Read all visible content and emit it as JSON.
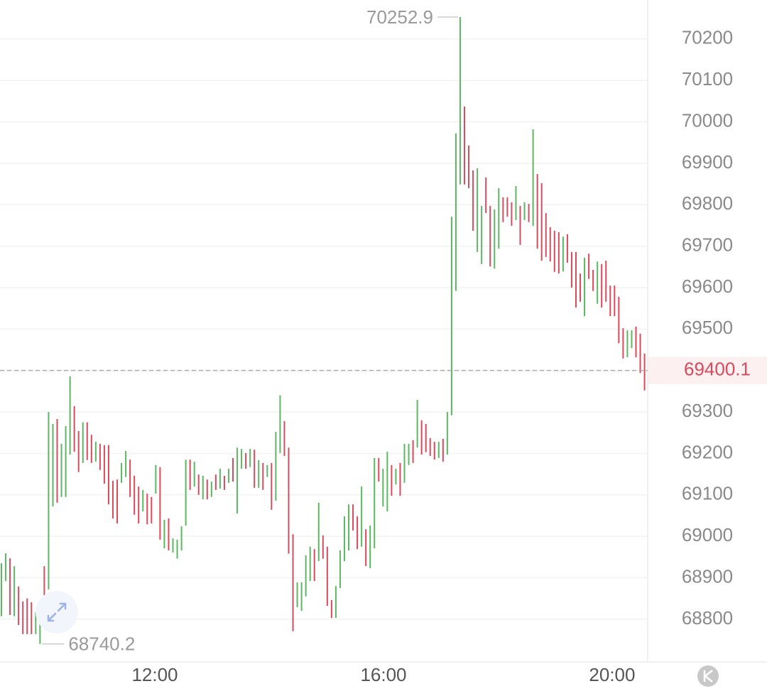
{
  "chart_data": {
    "type": "hilo",
    "up_color": "#5cb860",
    "down_color": "#d94a5c",
    "xlim": [
      557.5,
      1237.3
    ],
    "xticks": [
      {
        "value": 720,
        "label": "12:00"
      },
      {
        "value": 960,
        "label": "16:00"
      },
      {
        "value": 1200,
        "label": "20:00"
      }
    ],
    "ylim": [
      68697,
      70294
    ],
    "yticks": [
      68800,
      68900,
      69000,
      69100,
      69200,
      69300,
      69400,
      69500,
      69600,
      69700,
      69800,
      69900,
      70000,
      70100,
      70200
    ],
    "grid": true,
    "last_price": 69400.1,
    "x": [
      559,
      563.5,
      568,
      572.5,
      577,
      581.5,
      586,
      590.5,
      595,
      599.5,
      604,
      608.5,
      613,
      617.5,
      622,
      626.5,
      631,
      635.5,
      640,
      644.5,
      649,
      653.5,
      658,
      662.5,
      667,
      671.5,
      676,
      680.5,
      685,
      689.5,
      694,
      698.5,
      703,
      707.5,
      712,
      716.5,
      721,
      725.5,
      730,
      734.5,
      739,
      743.5,
      748,
      752.5,
      757,
      761.5,
      766,
      770.5,
      775,
      779.5,
      784,
      788.5,
      793,
      797.5,
      802,
      806.5,
      811,
      815.5,
      820,
      824.5,
      829,
      833.5,
      838,
      842.5,
      847,
      851.5,
      856,
      860.5,
      865,
      869.5,
      874,
      878.5,
      883,
      887.5,
      892,
      896.5,
      901,
      905.5,
      910,
      914.5,
      919,
      923.5,
      928,
      932.5,
      937,
      941.5,
      946,
      950.5,
      955,
      959.5,
      964,
      968.5,
      973,
      977.5,
      982,
      986.5,
      991,
      995.5,
      1000,
      1004.5,
      1009,
      1013.5,
      1018,
      1022.5,
      1027,
      1031.5,
      1036,
      1040.5,
      1045,
      1049.5,
      1054,
      1058.5,
      1063,
      1067.5,
      1072,
      1076.5,
      1081,
      1085.5,
      1090,
      1094.5,
      1099,
      1103.5,
      1108,
      1112.5,
      1117,
      1121.5,
      1126,
      1130.5,
      1135,
      1139.5,
      1144,
      1148.5,
      1153,
      1157.5,
      1162,
      1166.5,
      1171,
      1175.5,
      1180,
      1184.5,
      1189,
      1193.5,
      1198,
      1202.5,
      1207,
      1211.5,
      1216,
      1220.5,
      1225,
      1229.5,
      1234
    ],
    "high": [
      68935,
      68959,
      68947,
      68928,
      68879,
      68843,
      68850,
      68841,
      68817,
      68826,
      68928,
      69300,
      69271,
      69283,
      69223,
      69266,
      69386,
      69314,
      69254,
      69275,
      69275,
      69245,
      69228,
      69223,
      69220,
      69220,
      69134,
      69137,
      69177,
      69206,
      69185,
      69146,
      69120,
      69112,
      69103,
      69095,
      69172,
      69167,
      69040,
      69043,
      68995,
      68992,
      69024,
      69185,
      69185,
      69180,
      69149,
      69146,
      69137,
      69132,
      69149,
      69163,
      69146,
      69163,
      69189,
      69214,
      69211,
      69201,
      69211,
      69209,
      69184,
      69177,
      69172,
      69177,
      69252,
      69340,
      69278,
      69214,
      69005,
      68889,
      68889,
      68954,
      68975,
      68969,
      69081,
      69002,
      68975,
      68846,
      68880,
      68966,
      69048,
      69077,
      69077,
      69048,
      69120,
      69017,
      69026,
      69189,
      69189,
      69163,
      69204,
      69172,
      69163,
      69177,
      69223,
      69223,
      69232,
      69329,
      69280,
      69271,
      69237,
      69228,
      69228,
      69235,
      69300,
      69771,
      69972,
      70252.9,
      70037,
      69943,
      69883,
      69888,
      69797,
      69866,
      69797,
      69789,
      69840,
      69818,
      69818,
      69806,
      69845,
      69797,
      69806,
      69802,
      69982,
      69874,
      69852,
      69780,
      69746,
      69737,
      69734,
      69723,
      69729,
      69686,
      69686,
      69634,
      69672,
      69682,
      69643,
      69663,
      69657,
      69665,
      69605,
      69605,
      69578,
      69502,
      69497,
      69497,
      69506,
      69489,
      69441
    ],
    "low": [
      68807,
      68892,
      68810,
      68807,
      68786,
      68764,
      68764,
      68764,
      68764,
      68740.2,
      68820,
      68872,
      69072,
      69081,
      69095,
      69095,
      69197,
      69204,
      69155,
      69177,
      69184,
      69177,
      69180,
      69160,
      69127,
      69077,
      69043,
      69031,
      69129,
      69143,
      69095,
      69052,
      69031,
      69060,
      69029,
      69031,
      69103,
      68992,
      68971,
      68966,
      68961,
      68946,
      68966,
      69026,
      69112,
      69120,
      69100,
      69089,
      69089,
      69095,
      69112,
      69115,
      69112,
      69129,
      69132,
      69055,
      69163,
      69163,
      69167,
      69117,
      69117,
      69112,
      69143,
      69064,
      69086,
      69201,
      69194,
      68958,
      68771,
      68829,
      68820,
      68855,
      68892,
      68892,
      68940,
      68946,
      68832,
      68803,
      68803,
      68875,
      68940,
      68966,
      69014,
      68969,
      68975,
      68928,
      68923,
      68971,
      69132,
      69072,
      69060,
      69098,
      69125,
      69098,
      69129,
      69172,
      69177,
      69214,
      69197,
      69203,
      69194,
      69185,
      69189,
      69180,
      69197,
      69292,
      69592,
      69849,
      69849,
      69840,
      69737,
      69686,
      69657,
      69780,
      69651,
      69646,
      69694,
      69758,
      69771,
      69749,
      69763,
      69703,
      69763,
      69758,
      69749,
      69694,
      69665,
      69674,
      69663,
      69638,
      69634,
      69639,
      69660,
      69600,
      69552,
      69566,
      69531,
      69621,
      69592,
      69561,
      69552,
      69566,
      69531,
      69531,
      69466,
      69429,
      69432,
      69454,
      69432,
      69394,
      69352
    ],
    "rising": [
      1,
      1,
      0,
      1,
      0,
      0,
      0,
      0,
      1,
      1,
      0,
      1,
      1,
      0,
      1,
      1,
      1,
      0,
      0,
      1,
      0,
      0,
      1,
      0,
      0,
      0,
      0,
      0,
      1,
      1,
      0,
      0,
      0,
      1,
      0,
      0,
      1,
      0,
      1,
      0,
      1,
      1,
      1,
      1,
      0,
      1,
      0,
      1,
      0,
      1,
      0,
      1,
      0,
      1,
      0,
      1,
      1,
      0,
      1,
      0,
      1,
      0,
      1,
      0,
      1,
      1,
      0,
      0,
      0,
      1,
      1,
      1,
      1,
      0,
      1,
      0,
      0,
      0,
      1,
      1,
      1,
      1,
      0,
      0,
      1,
      0,
      1,
      1,
      0,
      1,
      1,
      0,
      1,
      0,
      1,
      1,
      0,
      1,
      0,
      0,
      0,
      0,
      1,
      0,
      1,
      1,
      1,
      1,
      0,
      0,
      0,
      1,
      1,
      0,
      0,
      1,
      1,
      0,
      0,
      0,
      1,
      0,
      1,
      0,
      1,
      0,
      0,
      0,
      0,
      0,
      0,
      1,
      0,
      0,
      0,
      0,
      1,
      0,
      0,
      1,
      0,
      0,
      0,
      0,
      0,
      0,
      1,
      1,
      0,
      0,
      0
    ]
  }
}
